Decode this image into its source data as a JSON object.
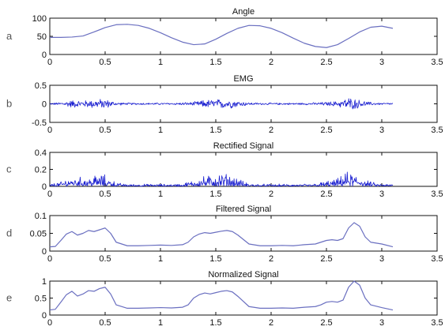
{
  "chart_data": [
    {
      "panel_label": "a",
      "type": "line",
      "title": "Angle",
      "xlim": [
        0,
        3.5
      ],
      "ylim": [
        0,
        100
      ],
      "xticks": [
        "0",
        "0.5",
        "1",
        "1.5",
        "2",
        "2.5",
        "3",
        "3.5"
      ],
      "yticks": [
        "0",
        "50",
        "100"
      ],
      "color": "#6a6fc0",
      "noisy": false,
      "series": [
        {
          "x": [
            0,
            0.1,
            0.2,
            0.3,
            0.4,
            0.5,
            0.6,
            0.7,
            0.8,
            0.9,
            1.0,
            1.1,
            1.2,
            1.3,
            1.4,
            1.5,
            1.6,
            1.7,
            1.8,
            1.9,
            2.0,
            2.1,
            2.2,
            2.3,
            2.4,
            2.5,
            2.6,
            2.7,
            2.8,
            2.9,
            3.0,
            3.1
          ],
          "values": [
            47,
            47,
            48,
            51,
            62,
            74,
            82,
            83,
            80,
            72,
            60,
            46,
            34,
            27,
            29,
            42,
            58,
            72,
            80,
            79,
            72,
            60,
            45,
            31,
            22,
            19,
            27,
            44,
            62,
            75,
            78,
            72
          ]
        }
      ]
    },
    {
      "panel_label": "b",
      "type": "line",
      "title": "EMG",
      "xlim": [
        0,
        3.5
      ],
      "ylim": [
        -0.5,
        0.5
      ],
      "xticks": [
        "0",
        "0.5",
        "1",
        "1.5",
        "2",
        "2.5",
        "3",
        "3.5"
      ],
      "yticks": [
        "-0.5",
        "0",
        "0.5"
      ],
      "color": "#1a1fd0",
      "noisy": true,
      "symmetric": true,
      "series": [
        {
          "x": [
            0,
            0.1,
            0.2,
            0.3,
            0.4,
            0.5,
            0.6,
            0.7,
            0.8,
            0.9,
            1.0,
            1.1,
            1.2,
            1.3,
            1.4,
            1.5,
            1.6,
            1.7,
            1.8,
            1.9,
            2.0,
            2.1,
            2.2,
            2.3,
            2.4,
            2.5,
            2.6,
            2.7,
            2.8,
            2.9,
            3.0,
            3.1
          ],
          "values": [
            0.02,
            0.05,
            0.12,
            0.1,
            0.14,
            0.15,
            0.05,
            0.03,
            0.03,
            0.03,
            0.03,
            0.03,
            0.04,
            0.06,
            0.12,
            0.14,
            0.15,
            0.1,
            0.04,
            0.03,
            0.03,
            0.03,
            0.03,
            0.03,
            0.04,
            0.06,
            0.08,
            0.2,
            0.12,
            0.05,
            0.03,
            0.03
          ]
        }
      ]
    },
    {
      "panel_label": "c",
      "type": "line",
      "title": "Rectified Signal",
      "xlim": [
        0,
        3.5
      ],
      "ylim": [
        0,
        0.4
      ],
      "xticks": [
        "0",
        "0.5",
        "1",
        "1.5",
        "2",
        "2.5",
        "3",
        "3.5"
      ],
      "yticks": [
        "0",
        "0.2",
        "0.4"
      ],
      "color": "#1a1fd0",
      "noisy": true,
      "symmetric": false,
      "series": [
        {
          "x": [
            0,
            0.1,
            0.2,
            0.3,
            0.4,
            0.5,
            0.6,
            0.7,
            0.8,
            0.9,
            1.0,
            1.1,
            1.2,
            1.3,
            1.4,
            1.5,
            1.6,
            1.7,
            1.8,
            1.9,
            2.0,
            2.1,
            2.2,
            2.3,
            2.4,
            2.5,
            2.6,
            2.7,
            2.8,
            2.9,
            3.0,
            3.1
          ],
          "values": [
            0.03,
            0.06,
            0.13,
            0.12,
            0.15,
            0.15,
            0.05,
            0.03,
            0.03,
            0.03,
            0.03,
            0.03,
            0.04,
            0.08,
            0.14,
            0.16,
            0.17,
            0.1,
            0.04,
            0.03,
            0.03,
            0.03,
            0.03,
            0.03,
            0.04,
            0.07,
            0.1,
            0.2,
            0.14,
            0.06,
            0.03,
            0.03
          ]
        }
      ]
    },
    {
      "panel_label": "d",
      "type": "line",
      "title": "Filtered Signal",
      "xlim": [
        0,
        3.5
      ],
      "ylim": [
        0,
        0.1
      ],
      "xticks": [
        "0",
        "0.5",
        "1",
        "1.5",
        "2",
        "2.5",
        "3",
        "3.5"
      ],
      "yticks": [
        "0",
        "0.05",
        "0.1"
      ],
      "color": "#6a6fc0",
      "noisy": false,
      "series": [
        {
          "x": [
            0,
            0.05,
            0.1,
            0.15,
            0.2,
            0.25,
            0.3,
            0.35,
            0.4,
            0.45,
            0.5,
            0.55,
            0.6,
            0.7,
            0.8,
            0.9,
            1.0,
            1.1,
            1.2,
            1.25,
            1.3,
            1.35,
            1.4,
            1.45,
            1.5,
            1.55,
            1.6,
            1.65,
            1.7,
            1.8,
            1.9,
            2.0,
            2.1,
            2.2,
            2.3,
            2.4,
            2.45,
            2.5,
            2.55,
            2.6,
            2.65,
            2.7,
            2.75,
            2.8,
            2.85,
            2.9,
            3.0,
            3.1
          ],
          "values": [
            0.012,
            0.013,
            0.03,
            0.048,
            0.055,
            0.045,
            0.05,
            0.058,
            0.055,
            0.06,
            0.065,
            0.05,
            0.025,
            0.015,
            0.015,
            0.016,
            0.017,
            0.016,
            0.018,
            0.025,
            0.04,
            0.048,
            0.052,
            0.05,
            0.053,
            0.056,
            0.058,
            0.055,
            0.045,
            0.02,
            0.015,
            0.015,
            0.016,
            0.015,
            0.018,
            0.02,
            0.025,
            0.03,
            0.032,
            0.03,
            0.035,
            0.065,
            0.08,
            0.07,
            0.04,
            0.025,
            0.02,
            0.012
          ]
        }
      ]
    },
    {
      "panel_label": "e",
      "type": "line",
      "title": "Normalized Signal",
      "xlim": [
        0,
        3.5
      ],
      "ylim": [
        0,
        1
      ],
      "xticks": [
        "0",
        "0.5",
        "1",
        "1.5",
        "2",
        "2.5",
        "3",
        "3.5"
      ],
      "yticks": [
        "0",
        "0.5",
        "1"
      ],
      "color": "#6a6fc0",
      "noisy": false,
      "series": [
        {
          "x": [
            0,
            0.05,
            0.1,
            0.15,
            0.2,
            0.25,
            0.3,
            0.35,
            0.4,
            0.45,
            0.5,
            0.55,
            0.6,
            0.7,
            0.8,
            0.9,
            1.0,
            1.1,
            1.2,
            1.25,
            1.3,
            1.35,
            1.4,
            1.45,
            1.5,
            1.55,
            1.6,
            1.65,
            1.7,
            1.8,
            1.9,
            2.0,
            2.1,
            2.2,
            2.3,
            2.4,
            2.45,
            2.5,
            2.55,
            2.6,
            2.65,
            2.7,
            2.75,
            2.8,
            2.85,
            2.9,
            3.0,
            3.1
          ],
          "values": [
            0.15,
            0.17,
            0.38,
            0.6,
            0.7,
            0.56,
            0.62,
            0.72,
            0.7,
            0.78,
            0.82,
            0.62,
            0.3,
            0.2,
            0.2,
            0.21,
            0.22,
            0.21,
            0.23,
            0.3,
            0.5,
            0.6,
            0.65,
            0.62,
            0.66,
            0.7,
            0.72,
            0.68,
            0.55,
            0.25,
            0.2,
            0.2,
            0.21,
            0.2,
            0.23,
            0.25,
            0.3,
            0.38,
            0.4,
            0.38,
            0.44,
            0.82,
            1.0,
            0.88,
            0.5,
            0.3,
            0.22,
            0.15
          ]
        }
      ]
    }
  ]
}
